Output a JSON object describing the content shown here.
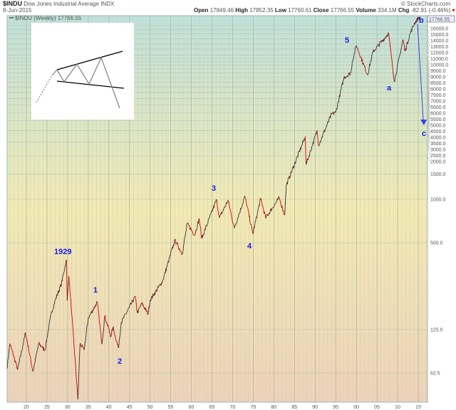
{
  "header": {
    "symbol": "$INDU",
    "name": "Dow Jones Industrial Average",
    "exchange": "INDX",
    "copyright": "© StockCharts.com",
    "date": "8-Jun-2015",
    "open_label": "Open",
    "open": "17849.46",
    "high_label": "High",
    "high": "17852.35",
    "low_label": "Low",
    "low": "17760.61",
    "close_label": "Close",
    "close": "17766.55",
    "volume_label": "Volume",
    "volume": "334.1M",
    "chg_label": "Chg",
    "chg": "-82.91 (-0.46%)"
  },
  "legend": {
    "label": "$INDU (Weekly) 17766.55",
    "last_value_tag": "17766.55"
  },
  "colors": {
    "price_up": "#333333",
    "price_down": "#dd0000",
    "annotation": "#1a1aee",
    "bg_top": "#bfe1da",
    "bg_mid": "#f3eab2",
    "bg_bottom": "#edd2b8"
  },
  "chart_data": {
    "type": "line",
    "scale": "log",
    "grid": true,
    "x_ticks": [
      "20",
      "25",
      "30",
      "35",
      "40",
      "45",
      "50",
      "55",
      "60",
      "65",
      "70",
      "75",
      "80",
      "85",
      "90",
      "95",
      "00",
      "05",
      "10",
      "15"
    ],
    "y_ticks": [
      "62.5",
      "125.0",
      "500.0",
      "1000.0",
      "1500.0",
      "2000.0",
      "2500.0",
      "3000.0",
      "3500.0",
      "4000.0",
      "4500.0",
      "5000.0",
      "5500.0",
      "6000.0",
      "6500.0",
      "7000.0",
      "7500.0",
      "8000.0",
      "8500.0",
      "9000.0",
      "9500.0",
      "10000.0",
      "11000.0",
      "12000.0",
      "13000.0",
      "14000.0",
      "15000.0",
      "16000.0"
    ],
    "series": [
      {
        "x": [
          1915.3,
          1916,
          1917.9,
          1919.8,
          1921.6,
          1923,
          1924.5,
          1926,
          1927,
          1928.5,
          1929.7,
          1929.9,
          1930.3,
          1931,
          1932.5,
          1933,
          1934,
          1935,
          1937.2,
          1938.3,
          1939,
          1940.5,
          1941,
          1942.3,
          1943,
          1946.4,
          1946.9,
          1948,
          1949.5,
          1950,
          1953,
          1956,
          1957.8,
          1959,
          1960.8,
          1961.9,
          1962.5,
          1966.1,
          1966.8,
          1968.9,
          1970.4,
          1973,
          1974.9,
          1976.8,
          1978,
          1981.3,
          1982.6,
          1983,
          1987.6,
          1987.8,
          1990.5,
          1990.8,
          1994,
          1995,
          1997,
          1998.7,
          1999,
          2000,
          2002.7,
          2004,
          2007.8,
          2009.2,
          2011.3,
          2011.8,
          2013,
          2014,
          2015.2,
          2015.45
        ],
        "y": [
          67,
          100,
          66,
          119,
          64,
          100,
          90,
          160,
          200,
          260,
          381,
          199,
          294,
          160,
          41,
          100,
          90,
          150,
          194,
          99,
          155,
          112,
          130,
          93,
          140,
          212,
          163,
          190,
          161,
          200,
          270,
          520,
          420,
          680,
          566,
          735,
          535,
          995,
          744,
          985,
          631,
          1051,
          577,
          1014,
          742,
          1024,
          777,
          1250,
          2722,
          1738,
          2999,
          2365,
          3900,
          4000,
          7000,
          7539,
          9000,
          11700,
          7286,
          10500,
          14164,
          6547,
          12800,
          10655,
          14000,
          16500,
          18300,
          17766.55
        ]
      }
    ],
    "annotations": [
      "1929",
      "1",
      "2",
      "3",
      "4",
      "5",
      "a",
      "b",
      "c"
    ]
  }
}
